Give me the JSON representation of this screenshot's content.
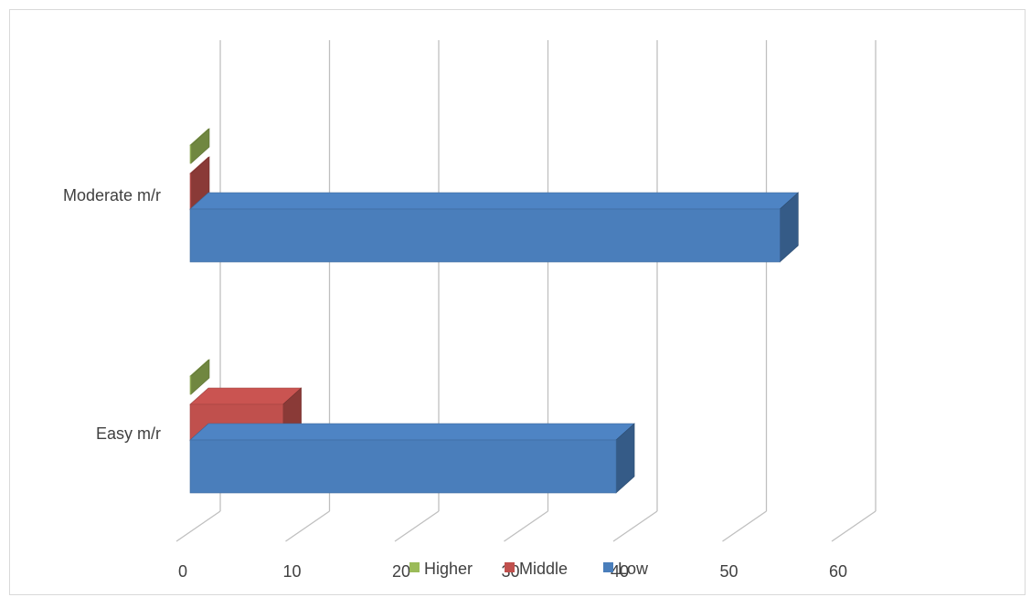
{
  "chart_data": {
    "type": "bar",
    "orientation": "horizontal",
    "style": "3d",
    "categories": [
      "Easy m/r",
      "Moderate m/r"
    ],
    "series": [
      {
        "name": "Low",
        "values": [
          39,
          54
        ],
        "color": "#4a7ebb"
      },
      {
        "name": "Middle",
        "values": [
          8.5,
          0
        ],
        "color": "#c0504d"
      },
      {
        "name": "Higher",
        "values": [
          0,
          0
        ],
        "color": "#9bbb59"
      }
    ],
    "xticks": [
      0,
      10,
      20,
      30,
      40,
      50,
      60
    ],
    "xlim": [
      0,
      60
    ],
    "grid": true,
    "legend_position": "bottom"
  }
}
